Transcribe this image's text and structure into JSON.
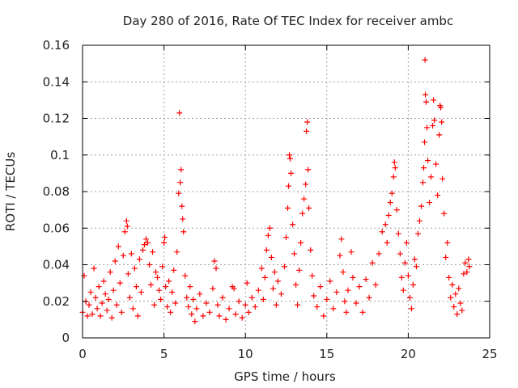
{
  "chart_data": {
    "type": "scatter",
    "title": "Day 280 of 2016, Rate Of TEC Index for receiver ambc",
    "xlabel": "GPS time / hours",
    "ylabel": "ROTI / TECUs",
    "xlim": [
      0,
      25
    ],
    "ylim": [
      0,
      0.16
    ],
    "x_ticks": [
      0,
      5,
      10,
      15,
      20,
      25
    ],
    "x_tick_labels": [
      "0",
      "5",
      "10",
      "15",
      "20",
      "25"
    ],
    "y_ticks": [
      0,
      0.02,
      0.04,
      0.06,
      0.08,
      0.1,
      0.12,
      0.14,
      0.16
    ],
    "y_tick_labels": [
      "0",
      "0.02",
      "0.04",
      "0.06",
      "0.08",
      "0.1",
      "0.12",
      "0.14",
      "0.16"
    ],
    "grid": true,
    "marker": "+",
    "color": "#ff0000",
    "series": [
      {
        "name": "ROTI",
        "points": [
          [
            0.0,
            0.014
          ],
          [
            0.1,
            0.034
          ],
          [
            0.2,
            0.02
          ],
          [
            0.3,
            0.012
          ],
          [
            0.4,
            0.018
          ],
          [
            0.5,
            0.025
          ],
          [
            0.6,
            0.013
          ],
          [
            0.7,
            0.038
          ],
          [
            0.8,
            0.022
          ],
          [
            0.9,
            0.016
          ],
          [
            1.0,
            0.028
          ],
          [
            1.1,
            0.012
          ],
          [
            1.2,
            0.019
          ],
          [
            1.3,
            0.031
          ],
          [
            1.4,
            0.024
          ],
          [
            1.5,
            0.015
          ],
          [
            1.6,
            0.021
          ],
          [
            1.7,
            0.036
          ],
          [
            1.8,
            0.011
          ],
          [
            1.9,
            0.026
          ],
          [
            2.0,
            0.042
          ],
          [
            2.1,
            0.018
          ],
          [
            2.2,
            0.05
          ],
          [
            2.3,
            0.03
          ],
          [
            2.4,
            0.014
          ],
          [
            2.5,
            0.045
          ],
          [
            2.6,
            0.058
          ],
          [
            2.7,
            0.064
          ],
          [
            2.75,
            0.061
          ],
          [
            2.8,
            0.035
          ],
          [
            2.9,
            0.022
          ],
          [
            3.0,
            0.046
          ],
          [
            3.1,
            0.016
          ],
          [
            3.2,
            0.038
          ],
          [
            3.3,
            0.028
          ],
          [
            3.4,
            0.012
          ],
          [
            3.5,
            0.043
          ],
          [
            3.6,
            0.025
          ],
          [
            3.7,
            0.048
          ],
          [
            3.8,
            0.051
          ],
          [
            3.9,
            0.054
          ],
          [
            4.0,
            0.052
          ],
          [
            4.1,
            0.04
          ],
          [
            4.2,
            0.029
          ],
          [
            4.3,
            0.047
          ],
          [
            4.4,
            0.018
          ],
          [
            4.5,
            0.036
          ],
          [
            4.6,
            0.033
          ],
          [
            4.7,
            0.026
          ],
          [
            4.8,
            0.021
          ],
          [
            4.9,
            0.039
          ],
          [
            5.0,
            0.052
          ],
          [
            5.05,
            0.055
          ],
          [
            5.1,
            0.028
          ],
          [
            5.2,
            0.017
          ],
          [
            5.3,
            0.031
          ],
          [
            5.4,
            0.014
          ],
          [
            5.5,
            0.025
          ],
          [
            5.6,
            0.037
          ],
          [
            5.7,
            0.019
          ],
          [
            5.8,
            0.047
          ],
          [
            5.9,
            0.079
          ],
          [
            5.95,
            0.123
          ],
          [
            6.0,
            0.085
          ],
          [
            6.05,
            0.092
          ],
          [
            6.1,
            0.072
          ],
          [
            6.15,
            0.065
          ],
          [
            6.2,
            0.058
          ],
          [
            6.3,
            0.034
          ],
          [
            6.4,
            0.022
          ],
          [
            6.5,
            0.017
          ],
          [
            6.6,
            0.028
          ],
          [
            6.7,
            0.013
          ],
          [
            6.8,
            0.021
          ],
          [
            6.9,
            0.009
          ],
          [
            7.0,
            0.016
          ],
          [
            7.2,
            0.024
          ],
          [
            7.4,
            0.012
          ],
          [
            7.6,
            0.019
          ],
          [
            7.8,
            0.014
          ],
          [
            8.0,
            0.027
          ],
          [
            8.1,
            0.042
          ],
          [
            8.2,
            0.038
          ],
          [
            8.3,
            0.018
          ],
          [
            8.4,
            0.012
          ],
          [
            8.6,
            0.022
          ],
          [
            8.8,
            0.01
          ],
          [
            9.0,
            0.016
          ],
          [
            9.2,
            0.028
          ],
          [
            9.3,
            0.027
          ],
          [
            9.4,
            0.013
          ],
          [
            9.6,
            0.02
          ],
          [
            9.8,
            0.011
          ],
          [
            10.0,
            0.018
          ],
          [
            10.1,
            0.03
          ],
          [
            10.2,
            0.014
          ],
          [
            10.4,
            0.022
          ],
          [
            10.6,
            0.017
          ],
          [
            10.8,
            0.026
          ],
          [
            11.0,
            0.038
          ],
          [
            11.1,
            0.021
          ],
          [
            11.2,
            0.033
          ],
          [
            11.3,
            0.048
          ],
          [
            11.4,
            0.056
          ],
          [
            11.5,
            0.06
          ],
          [
            11.6,
            0.044
          ],
          [
            11.7,
            0.027
          ],
          [
            11.8,
            0.036
          ],
          [
            11.9,
            0.018
          ],
          [
            12.0,
            0.031
          ],
          [
            12.2,
            0.024
          ],
          [
            12.4,
            0.039
          ],
          [
            12.5,
            0.055
          ],
          [
            12.6,
            0.071
          ],
          [
            12.65,
            0.083
          ],
          [
            12.7,
            0.1
          ],
          [
            12.75,
            0.098
          ],
          [
            12.8,
            0.09
          ],
          [
            12.9,
            0.062
          ],
          [
            13.0,
            0.046
          ],
          [
            13.1,
            0.029
          ],
          [
            13.2,
            0.018
          ],
          [
            13.3,
            0.037
          ],
          [
            13.4,
            0.052
          ],
          [
            13.5,
            0.068
          ],
          [
            13.6,
            0.076
          ],
          [
            13.7,
            0.084
          ],
          [
            13.75,
            0.113
          ],
          [
            13.8,
            0.118
          ],
          [
            13.85,
            0.092
          ],
          [
            13.9,
            0.071
          ],
          [
            14.0,
            0.048
          ],
          [
            14.1,
            0.034
          ],
          [
            14.2,
            0.023
          ],
          [
            14.4,
            0.017
          ],
          [
            14.6,
            0.028
          ],
          [
            14.8,
            0.012
          ],
          [
            15.0,
            0.021
          ],
          [
            15.2,
            0.031
          ],
          [
            15.4,
            0.016
          ],
          [
            15.6,
            0.025
          ],
          [
            15.8,
            0.045
          ],
          [
            15.9,
            0.054
          ],
          [
            16.0,
            0.036
          ],
          [
            16.1,
            0.02
          ],
          [
            16.2,
            0.014
          ],
          [
            16.3,
            0.026
          ],
          [
            16.5,
            0.047
          ],
          [
            16.6,
            0.033
          ],
          [
            16.8,
            0.019
          ],
          [
            17.0,
            0.028
          ],
          [
            17.2,
            0.014
          ],
          [
            17.4,
            0.032
          ],
          [
            17.6,
            0.022
          ],
          [
            17.8,
            0.041
          ],
          [
            18.0,
            0.029
          ],
          [
            18.2,
            0.046
          ],
          [
            18.4,
            0.058
          ],
          [
            18.6,
            0.062
          ],
          [
            18.7,
            0.052
          ],
          [
            18.8,
            0.067
          ],
          [
            18.9,
            0.074
          ],
          [
            19.0,
            0.079
          ],
          [
            19.1,
            0.088
          ],
          [
            19.15,
            0.096
          ],
          [
            19.2,
            0.093
          ],
          [
            19.3,
            0.07
          ],
          [
            19.4,
            0.057
          ],
          [
            19.5,
            0.046
          ],
          [
            19.6,
            0.033
          ],
          [
            19.7,
            0.026
          ],
          [
            19.8,
            0.041
          ],
          [
            19.9,
            0.052
          ],
          [
            20.0,
            0.034
          ],
          [
            20.1,
            0.022
          ],
          [
            20.2,
            0.016
          ],
          [
            20.3,
            0.029
          ],
          [
            20.4,
            0.043
          ],
          [
            20.5,
            0.039
          ],
          [
            20.6,
            0.057
          ],
          [
            20.7,
            0.064
          ],
          [
            20.8,
            0.072
          ],
          [
            20.9,
            0.085
          ],
          [
            20.95,
            0.093
          ],
          [
            21.0,
            0.107
          ],
          [
            21.03,
            0.152
          ],
          [
            21.05,
            0.133
          ],
          [
            21.1,
            0.129
          ],
          [
            21.15,
            0.115
          ],
          [
            21.2,
            0.097
          ],
          [
            21.3,
            0.074
          ],
          [
            21.4,
            0.088
          ],
          [
            21.5,
            0.116
          ],
          [
            21.55,
            0.13
          ],
          [
            21.6,
            0.119
          ],
          [
            21.7,
            0.095
          ],
          [
            21.8,
            0.078
          ],
          [
            21.9,
            0.111
          ],
          [
            21.95,
            0.127
          ],
          [
            22.0,
            0.126
          ],
          [
            22.05,
            0.118
          ],
          [
            22.1,
            0.087
          ],
          [
            22.2,
            0.068
          ],
          [
            22.3,
            0.044
          ],
          [
            22.4,
            0.052
          ],
          [
            22.5,
            0.033
          ],
          [
            22.6,
            0.022
          ],
          [
            22.7,
            0.029
          ],
          [
            22.8,
            0.017
          ],
          [
            22.9,
            0.024
          ],
          [
            23.0,
            0.013
          ],
          [
            23.1,
            0.027
          ],
          [
            23.2,
            0.019
          ],
          [
            23.3,
            0.015
          ],
          [
            23.4,
            0.035
          ],
          [
            23.5,
            0.041
          ],
          [
            23.6,
            0.036
          ],
          [
            23.7,
            0.043
          ],
          [
            23.75,
            0.039
          ]
        ]
      }
    ]
  }
}
